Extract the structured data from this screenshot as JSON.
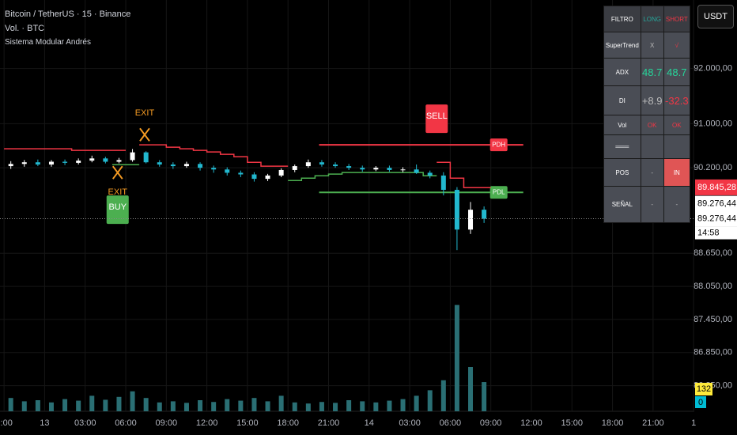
{
  "header": {
    "lines": [
      "Bitcoin / TetherUS · 15 · Binance",
      "Vol. · BTC",
      "Sistema Modular Andrés"
    ],
    "currency": "USDT"
  },
  "chart_data": {
    "type": "candlestick",
    "x": [
      0.5,
      1.5,
      2.5,
      3.5,
      4.5,
      5.5,
      6.5,
      7.5,
      8.5,
      9.5,
      10.5,
      11.5,
      12.5,
      13.5,
      14.5,
      15.5,
      16.5,
      17.5,
      18.5,
      19.5,
      20.5,
      21.5,
      22.5,
      23.5,
      24.5,
      25.5,
      26.5,
      27.5,
      28.5,
      29.5,
      30.5,
      31.5,
      32.5,
      33.5,
      34.5,
      35.5
    ],
    "open": [
      90230,
      90270,
      90300,
      90260,
      90310,
      90290,
      90330,
      90370,
      90310,
      90340,
      90480,
      90300,
      90260,
      90230,
      90270,
      90200,
      90170,
      90110,
      90080,
      90000,
      90060,
      90160,
      90230,
      90300,
      90260,
      90230,
      90200,
      90170,
      90200,
      90160,
      90170,
      90110,
      90060,
      89800,
      89080,
      89440
    ],
    "high": [
      90320,
      90340,
      90350,
      90340,
      90350,
      90370,
      90420,
      90400,
      90380,
      90540,
      90500,
      90340,
      90300,
      90310,
      90300,
      90240,
      90210,
      90150,
      90120,
      90090,
      90190,
      90260,
      90350,
      90340,
      90300,
      90270,
      90240,
      90230,
      90240,
      90210,
      90260,
      90150,
      90120,
      89850,
      89580,
      89500
    ],
    "low": [
      90180,
      90220,
      90230,
      90220,
      90250,
      90260,
      90300,
      90280,
      90280,
      90310,
      90280,
      90220,
      90180,
      90200,
      90150,
      90110,
      90060,
      90030,
      89950,
      89960,
      90030,
      90120,
      90200,
      90220,
      90200,
      90160,
      90130,
      90140,
      90130,
      90120,
      90090,
      90010,
      89700,
      88708,
      89000,
      89200
    ],
    "close": [
      90270,
      90300,
      90260,
      90310,
      90290,
      90330,
      90370,
      90310,
      90340,
      90480,
      90300,
      90260,
      90230,
      90270,
      90200,
      90170,
      90110,
      90080,
      90000,
      90060,
      90160,
      90230,
      90300,
      90260,
      90230,
      90200,
      90170,
      90200,
      90160,
      90170,
      90110,
      90060,
      89800,
      89080,
      89440,
      89276
    ],
    "up_color": "#ffffff",
    "down_color": "#22b8cf",
    "lines": [
      {
        "color": "#f23645",
        "values": [
          90544,
          90544,
          90544,
          90544,
          90544,
          90516,
          90516,
          90516,
          90516,
          null,
          90616,
          90616,
          90573,
          90544,
          90516,
          90487,
          90444,
          90401,
          90300,
          90229,
          90229,
          null,
          null,
          null,
          null,
          null,
          null,
          null,
          null,
          null,
          null,
          null,
          90300,
          90013,
          89841,
          89841
        ]
      },
      {
        "color": "#4caf50",
        "values": [
          null,
          null,
          null,
          null,
          null,
          null,
          null,
          null,
          90257,
          90257,
          null,
          null,
          null,
          null,
          null,
          null,
          null,
          null,
          null,
          null,
          null,
          89970,
          90013,
          90056,
          90085,
          90114,
          90114,
          90114,
          90114,
          90114,
          90114,
          90056,
          null,
          null,
          null,
          null
        ]
      }
    ],
    "levels": [
      {
        "label": "PDH",
        "value": 90616,
        "color": "#f23645",
        "xrange": [
          23.3,
          38.4
        ]
      },
      {
        "label": "PDL",
        "value": 89755,
        "color": "#4caf50",
        "xrange": [
          23.3,
          38.4
        ]
      }
    ],
    "annotations": [
      {
        "text": "EXIT",
        "style": "cross",
        "x": 10.4,
        "y": 90800,
        "color": "#f59b23"
      },
      {
        "text": "EXIT",
        "style": "cross",
        "x": 8.4,
        "y": 90114,
        "color": "#f59b23"
      },
      {
        "text": "BUY",
        "style": "label",
        "x": 8.4,
        "y": 89440,
        "color": "#4caf50"
      },
      {
        "text": "SELL",
        "style": "label",
        "x": 32,
        "y": 91090,
        "color": "#f23645"
      }
    ],
    "ylim": [
      86000,
      93200
    ],
    "yticks": [
      {
        "value": 92000,
        "label": "92.000,00"
      },
      {
        "value": 91000,
        "label": "91.000,00"
      },
      {
        "value": 90200,
        "label": "90.200,00"
      },
      {
        "value": 88650,
        "label": "88.650,00"
      },
      {
        "value": 88050,
        "label": "88.050,00"
      },
      {
        "value": 87450,
        "label": "87.450,00"
      },
      {
        "value": 86850,
        "label": "86.850,00"
      },
      {
        "value": 86250,
        "label": "86.250,00"
      }
    ],
    "xlim": [
      -0.3,
      51.05
    ],
    "xticks": [
      {
        "value": 0,
        "label": "0:00"
      },
      {
        "value": 3,
        "label": "13"
      },
      {
        "value": 6,
        "label": "03:00"
      },
      {
        "value": 9,
        "label": "06:00"
      },
      {
        "value": 12,
        "label": "09:00"
      },
      {
        "value": 15,
        "label": "12:00"
      },
      {
        "value": 18,
        "label": "15:00"
      },
      {
        "value": 21,
        "label": "18:00"
      },
      {
        "value": 24,
        "label": "21:00"
      },
      {
        "value": 27,
        "label": "14"
      },
      {
        "value": 30,
        "label": "03:00"
      },
      {
        "value": 33,
        "label": "06:00"
      },
      {
        "value": 36,
        "label": "09:00"
      },
      {
        "value": 39,
        "label": "12:00"
      },
      {
        "value": 42,
        "label": "15:00"
      },
      {
        "value": 45,
        "label": "18:00"
      },
      {
        "value": 48,
        "label": "21:00"
      },
      {
        "value": 51,
        "label": "1"
      }
    ],
    "price_labels": [
      {
        "value": 89845.28,
        "label": "89.845,28",
        "color": "#f23645"
      },
      {
        "value": 89276.44,
        "label": "89.276,44",
        "color": "#ffffff"
      },
      {
        "value": 89276.44,
        "label": "89.276,44",
        "color": "#ffffff"
      }
    ],
    "countdown": "14:58",
    "volume": {
      "values": [
        60,
        45,
        50,
        40,
        55,
        48,
        70,
        52,
        65,
        90,
        60,
        40,
        45,
        38,
        50,
        42,
        55,
        48,
        60,
        45,
        70,
        40,
        35,
        42,
        38,
        50,
        45,
        40,
        48,
        55,
        70,
        95,
        140,
        480,
        200,
        132
      ],
      "value_labels": [
        null,
        null,
        null,
        null,
        null,
        null,
        null,
        null,
        null,
        null,
        null,
        null,
        null,
        null,
        null,
        null,
        null,
        null,
        null,
        null,
        null,
        null,
        null,
        null,
        null,
        null,
        null,
        null,
        null,
        null,
        null,
        null,
        null,
        null,
        null,
        "132"
      ],
      "ylim": [
        0,
        500
      ],
      "color": "#2a6f74"
    },
    "indicator_label": "0"
  },
  "table": {
    "rows": [
      [
        "FILTRO",
        "LONG",
        "SHORT"
      ],
      [
        "SuperTrend",
        "X",
        "√"
      ],
      [
        "ADX",
        "48.7",
        "48.7"
      ],
      [
        "DI",
        "+8.9",
        "-32.3"
      ],
      [
        "Vol",
        "OK",
        "OK"
      ],
      [
        "═══",
        "",
        ""
      ],
      [
        "POS",
        "-",
        "IN"
      ],
      [
        "SEÑAL",
        "-",
        "-"
      ]
    ]
  }
}
